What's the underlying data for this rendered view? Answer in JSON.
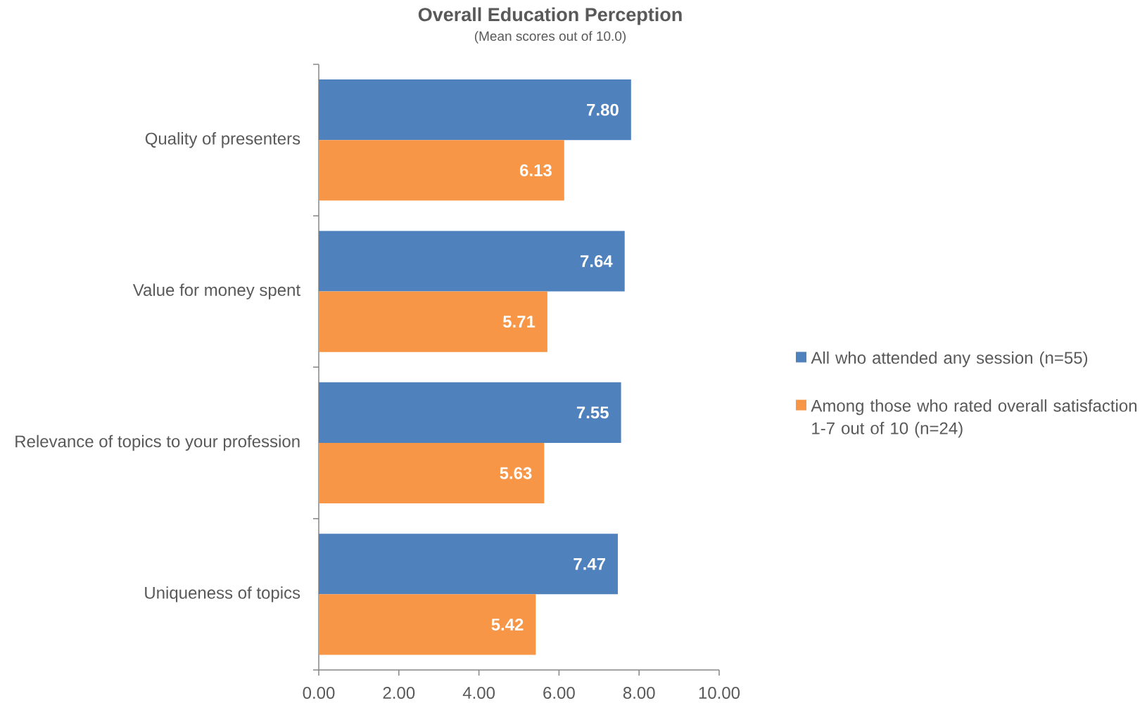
{
  "chart_data": {
    "type": "bar",
    "orientation": "horizontal",
    "title": "Overall Education Perception",
    "subtitle": "(Mean scores out of 10.0)",
    "categories": [
      "Quality of presenters",
      "Value for money spent",
      "Relevance of topics to your profession",
      "Uniqueness of topics"
    ],
    "series": [
      {
        "name": "All who attended any session (n=55)",
        "color": "#4f81bd",
        "values": [
          7.8,
          7.64,
          7.55,
          7.47
        ],
        "value_labels": [
          "7.80",
          "7.64",
          "7.55",
          "7.47"
        ]
      },
      {
        "name": "Among those who rated overall satisfaction 1-7 out of 10 (n=24)",
        "color": "#f79646",
        "values": [
          6.13,
          5.71,
          5.63,
          5.42
        ],
        "value_labels": [
          "6.13",
          "5.71",
          "5.63",
          "5.42"
        ]
      }
    ],
    "xlim": [
      0,
      10
    ],
    "xticks": [
      {
        "value": 0,
        "label": "0.00"
      },
      {
        "value": 2,
        "label": "2.00"
      },
      {
        "value": 4,
        "label": "4.00"
      },
      {
        "value": 6,
        "label": "6.00"
      },
      {
        "value": 8,
        "label": "8.00"
      },
      {
        "value": 10,
        "label": "10.00"
      }
    ],
    "grid": false,
    "legend": "right"
  }
}
